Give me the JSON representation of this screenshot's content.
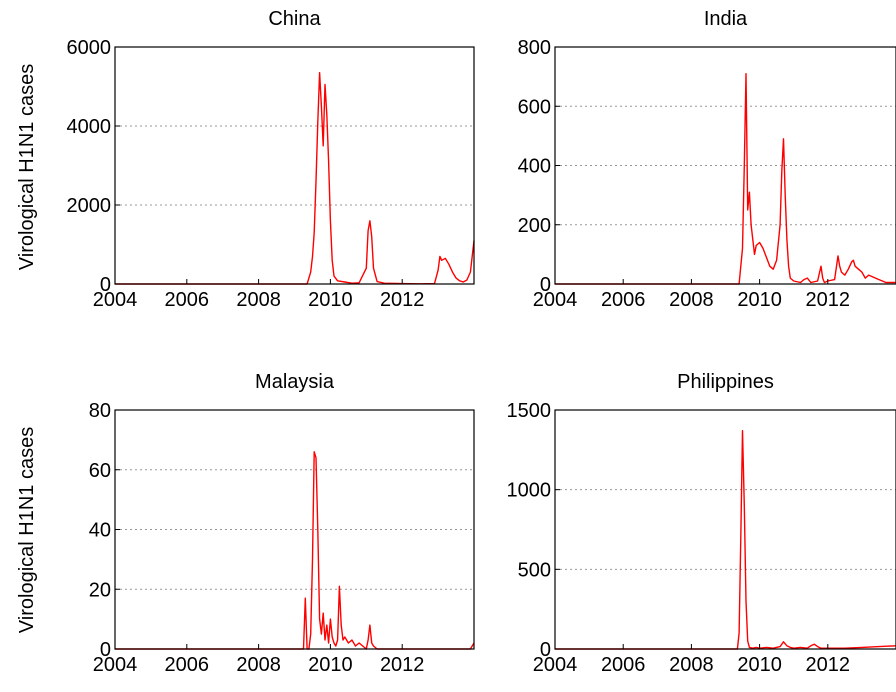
{
  "figure": {
    "ylabel": "Virological H1N1 cases"
  },
  "colors": {
    "series": "#ff0000",
    "grid": "#999999",
    "axis": "#000000"
  },
  "chart_data": [
    {
      "type": "line",
      "title": "China",
      "xlabel": "",
      "ylabel": "Virological H1N1 cases",
      "xlim": [
        2004,
        2014
      ],
      "ylim": [
        0,
        6000
      ],
      "xticks": [
        2004,
        2006,
        2008,
        2010,
        2012
      ],
      "yticks": [
        0,
        2000,
        4000,
        6000
      ],
      "grid": "y-dotted",
      "series": [
        {
          "x": [
            2004,
            2009.35,
            2009.45,
            2009.5,
            2009.55,
            2009.6,
            2009.65,
            2009.7,
            2009.75,
            2009.8,
            2009.85,
            2009.9,
            2009.95,
            2010.0,
            2010.05,
            2010.1,
            2010.2,
            2010.4,
            2010.6,
            2010.8,
            2011.0,
            2011.05,
            2011.1,
            2011.15,
            2011.2,
            2011.3,
            2011.5,
            2012.0,
            2012.5,
            2012.9,
            2013.0,
            2013.05,
            2013.1,
            2013.2,
            2013.3,
            2013.4,
            2013.5,
            2013.6,
            2013.7,
            2013.8,
            2013.9,
            2014.0
          ],
          "y": [
            0,
            0,
            300,
            700,
            1300,
            2600,
            4100,
            5350,
            4500,
            3500,
            5050,
            4300,
            3100,
            1600,
            600,
            200,
            80,
            50,
            20,
            30,
            400,
            1350,
            1600,
            1200,
            400,
            60,
            20,
            10,
            5,
            10,
            350,
            700,
            600,
            650,
            500,
            300,
            150,
            80,
            50,
            100,
            300,
            1100
          ]
        }
      ]
    },
    {
      "type": "line",
      "title": "India",
      "xlabel": "",
      "ylabel": "",
      "xlim": [
        2004,
        2014
      ],
      "ylim": [
        0,
        800
      ],
      "xticks": [
        2004,
        2006,
        2008,
        2010,
        2012
      ],
      "yticks": [
        0,
        200,
        400,
        600,
        800
      ],
      "grid": "y-dotted",
      "series": [
        {
          "x": [
            2004,
            2009.4,
            2009.5,
            2009.55,
            2009.6,
            2009.65,
            2009.7,
            2009.75,
            2009.8,
            2009.85,
            2009.9,
            2010.0,
            2010.1,
            2010.2,
            2010.3,
            2010.4,
            2010.5,
            2010.6,
            2010.65,
            2010.7,
            2010.75,
            2010.8,
            2010.85,
            2010.9,
            2011.0,
            2011.2,
            2011.3,
            2011.4,
            2011.5,
            2011.7,
            2011.8,
            2011.85,
            2011.9,
            2012.0,
            2012.2,
            2012.3,
            2012.35,
            2012.4,
            2012.5,
            2012.6,
            2012.7,
            2012.75,
            2012.8,
            2012.9,
            2013.0,
            2013.1,
            2013.2,
            2013.3,
            2013.4,
            2013.5,
            2013.6,
            2013.7,
            2014.0
          ],
          "y": [
            0,
            0,
            120,
            400,
            710,
            250,
            310,
            200,
            150,
            100,
            130,
            140,
            120,
            90,
            60,
            50,
            80,
            200,
            380,
            490,
            300,
            150,
            60,
            20,
            10,
            5,
            15,
            20,
            5,
            10,
            60,
            20,
            5,
            10,
            15,
            95,
            60,
            40,
            30,
            50,
            75,
            80,
            60,
            50,
            40,
            20,
            30,
            25,
            20,
            15,
            10,
            5,
            5
          ]
        }
      ]
    },
    {
      "type": "line",
      "title": "Malaysia",
      "xlabel": "",
      "ylabel": "Virological H1N1 cases",
      "xlim": [
        2004,
        2014
      ],
      "ylim": [
        0,
        80
      ],
      "xticks": [
        2004,
        2006,
        2008,
        2010,
        2012
      ],
      "yticks": [
        0,
        20,
        40,
        60,
        80
      ],
      "grid": "y-dotted",
      "series": [
        {
          "x": [
            2004,
            2009.25,
            2009.3,
            2009.35,
            2009.4,
            2009.45,
            2009.5,
            2009.55,
            2009.6,
            2009.65,
            2009.7,
            2009.75,
            2009.8,
            2009.85,
            2009.9,
            2009.95,
            2010.0,
            2010.05,
            2010.1,
            2010.15,
            2010.2,
            2010.25,
            2010.3,
            2010.35,
            2010.4,
            2010.5,
            2010.6,
            2010.7,
            2010.8,
            2010.9,
            2011.0,
            2011.05,
            2011.1,
            2011.15,
            2011.2,
            2011.3,
            2011.5,
            2012.0,
            2013.0,
            2013.9,
            2014.0
          ],
          "y": [
            0,
            0,
            17,
            0,
            0,
            5,
            30,
            66,
            64,
            40,
            10,
            5,
            12,
            3,
            8,
            2,
            10,
            4,
            2,
            1,
            3,
            21,
            8,
            3,
            4,
            2,
            3,
            1,
            2,
            1,
            0,
            3,
            8,
            2,
            1,
            0,
            0,
            0,
            0,
            0,
            2
          ]
        }
      ]
    },
    {
      "type": "line",
      "title": "Philippines",
      "xlabel": "",
      "ylabel": "",
      "xlim": [
        2004,
        2014
      ],
      "ylim": [
        0,
        1500
      ],
      "xticks": [
        2004,
        2006,
        2008,
        2010,
        2012
      ],
      "yticks": [
        0,
        500,
        1000,
        1500
      ],
      "grid": "y-dotted",
      "series": [
        {
          "x": [
            2004,
            2009.35,
            2009.4,
            2009.45,
            2009.5,
            2009.55,
            2009.6,
            2009.65,
            2009.7,
            2009.8,
            2009.9,
            2010.0,
            2010.2,
            2010.4,
            2010.6,
            2010.7,
            2010.8,
            2010.9,
            2011.0,
            2011.2,
            2011.4,
            2011.5,
            2011.6,
            2011.7,
            2011.8,
            2012.0,
            2012.5,
            2013.0,
            2013.5,
            2014.0
          ],
          "y": [
            0,
            0,
            100,
            700,
            1370,
            900,
            300,
            50,
            10,
            5,
            10,
            5,
            10,
            5,
            15,
            45,
            20,
            10,
            5,
            10,
            5,
            20,
            30,
            15,
            5,
            5,
            5,
            10,
            15,
            20
          ]
        }
      ]
    }
  ]
}
